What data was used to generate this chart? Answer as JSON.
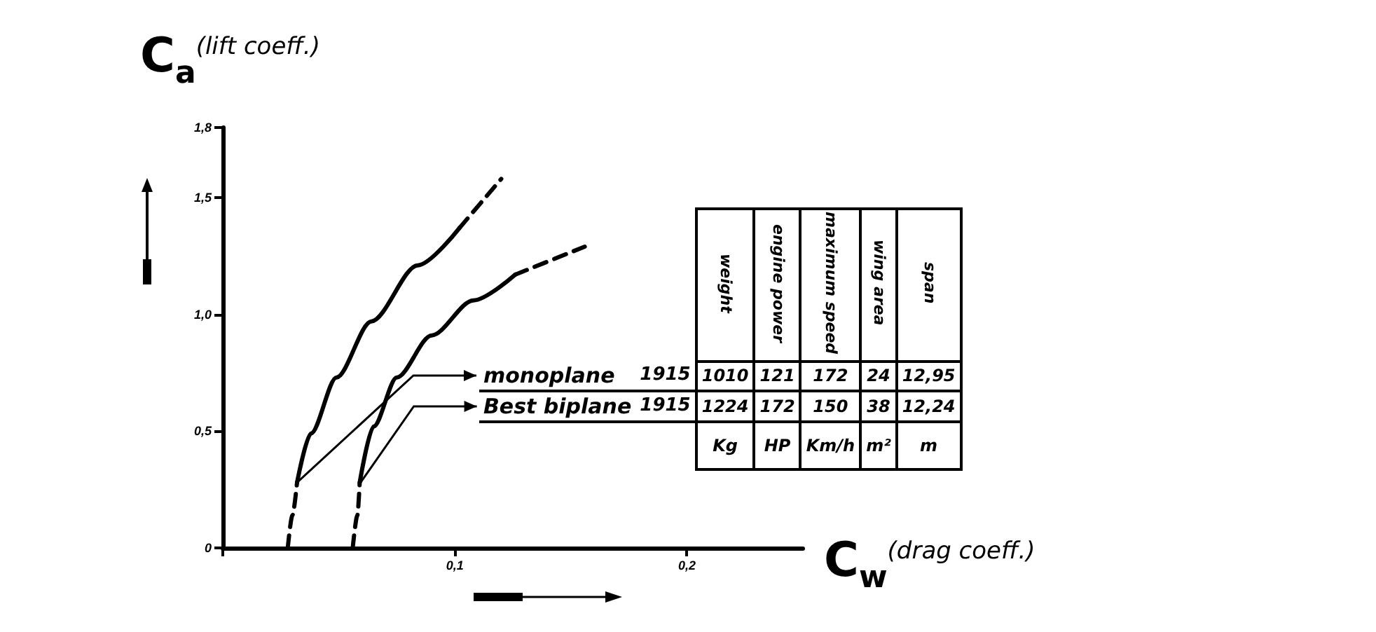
{
  "chart_data": {
    "type": "line",
    "ylabel": "C$_{a}$$^{(lift coeff.)}$",
    "xlabel": "C$_{w}$$^{(drag coeff.)}$",
    "xlim": [
      0,
      0.25
    ],
    "xticks": [
      {
        "value": 0,
        "label": null
      },
      {
        "value": 0.1,
        "label": "0,1"
      },
      {
        "value": 0.2,
        "label": "0,2"
      }
    ],
    "ylim": [
      0,
      1.8
    ],
    "yticks": [
      {
        "value": 0,
        "label": "0"
      },
      {
        "value": 0.5,
        "label": "0,5"
      },
      {
        "value": 1.0,
        "label": "1,0"
      },
      {
        "value": 1.5,
        "label": "1,5"
      },
      {
        "value": 1.8,
        "label": "1,8"
      }
    ],
    "grid": false,
    "marker": "none",
    "series": [
      {
        "color": "#000000",
        "line_style": "dashed",
        "x": [
          0.028,
          0.03,
          0.032
        ],
        "values": [
          0,
          0.14,
          0.28
        ]
      },
      {
        "color": "#000000",
        "line_style": "solid",
        "x": [
          0.032,
          0.038,
          0.049,
          0.064,
          0.084,
          0.102
        ],
        "values": [
          0.28,
          0.49,
          0.73,
          0.97,
          1.21,
          1.37
        ]
      },
      {
        "color": "#000000",
        "line_style": "dashed",
        "x": [
          0.102,
          0.12
        ],
        "values": [
          1.37,
          1.58
        ]
      },
      {
        "color": "#000000",
        "line_style": "dashed",
        "x": [
          0.056,
          0.058,
          0.059
        ],
        "values": [
          0,
          0.14,
          0.28
        ]
      },
      {
        "color": "#000000",
        "line_style": "solid",
        "x": [
          0.059,
          0.065,
          0.075,
          0.09,
          0.108,
          0.126
        ],
        "values": [
          0.28,
          0.52,
          0.73,
          0.91,
          1.06,
          1.17
        ]
      },
      {
        "color": "#000000",
        "line_style": "dashed",
        "x": [
          0.126,
          0.156
        ],
        "values": [
          1.17,
          1.29
        ]
      }
    ],
    "annotations": [
      "weight",
      "engine power",
      "maximum speed",
      "wing area",
      "span",
      "monoplane",
      "1915",
      "1010",
      "121",
      "172",
      "24",
      "12,95",
      "Best biplane",
      "1915",
      "1224",
      "172",
      "150",
      "38",
      "12,24",
      "Kg",
      "HP",
      "Km/h",
      "m²",
      "m"
    ]
  }
}
